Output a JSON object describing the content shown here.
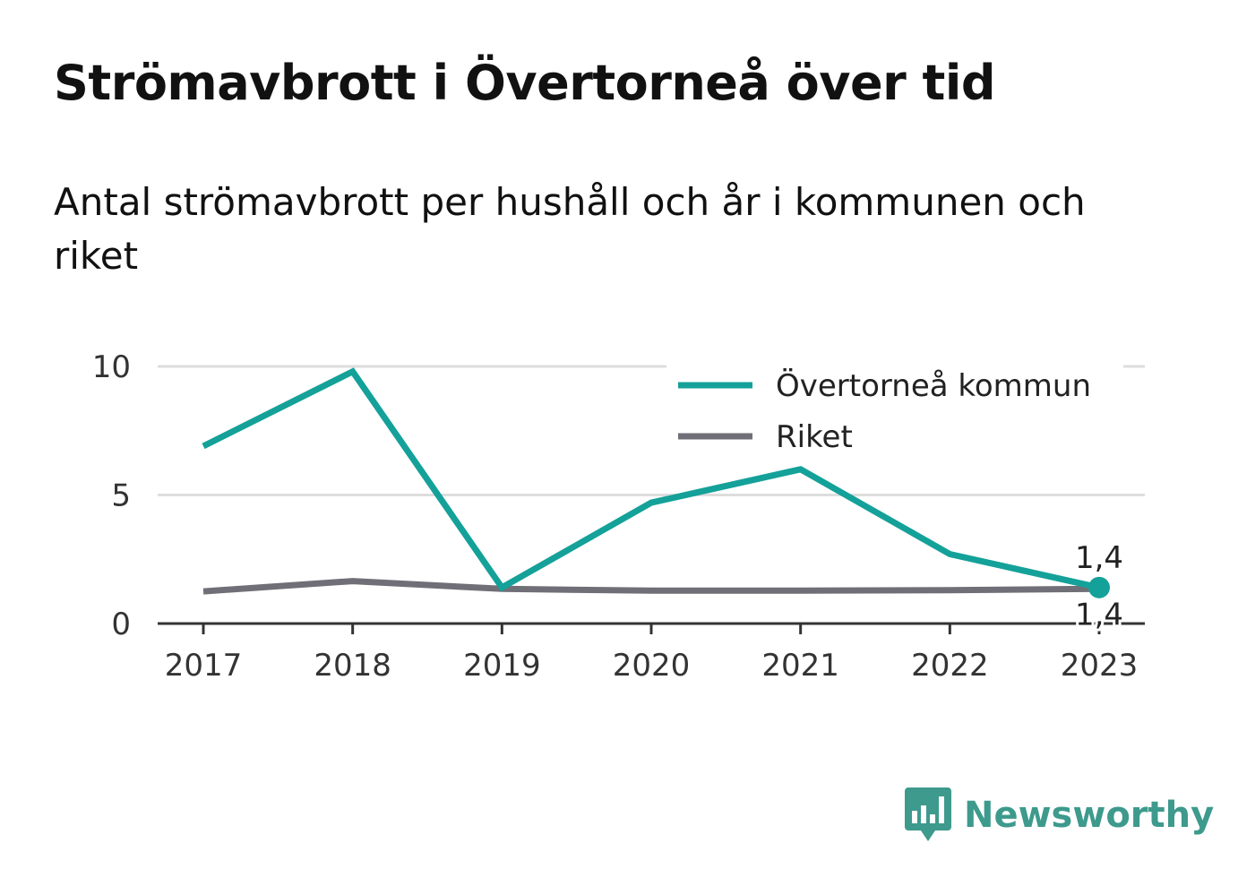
{
  "header": {
    "title": "Strömavbrott i Övertorneå över tid",
    "subtitle": "Antal strömavbrott per hushåll och år i kommunen och riket"
  },
  "brand": {
    "name": "Newsworthy",
    "icon": "newsworthy-bar-chart-icon",
    "color": "#3d9a8c"
  },
  "chart_data": {
    "type": "line",
    "title": "Strömavbrott i Övertorneå över tid",
    "subtitle": "Antal strömavbrott per hushåll och år i kommunen och riket",
    "xlabel": "",
    "ylabel": "",
    "x": [
      "2017",
      "2018",
      "2019",
      "2020",
      "2021",
      "2022",
      "2023"
    ],
    "ylim": [
      0,
      10
    ],
    "yticks": [
      0,
      5,
      10
    ],
    "grid": true,
    "legend": "top-right",
    "series": [
      {
        "name": "Övertorneå kommun",
        "color": "#14a199",
        "values": [
          6.9,
          9.8,
          1.4,
          4.7,
          6.0,
          2.7,
          1.4
        ],
        "end_label": "1,4"
      },
      {
        "name": "Riket",
        "color": "#706f77",
        "values": [
          1.25,
          1.65,
          1.35,
          1.28,
          1.28,
          1.3,
          1.35
        ],
        "end_label": "1,4"
      }
    ]
  }
}
